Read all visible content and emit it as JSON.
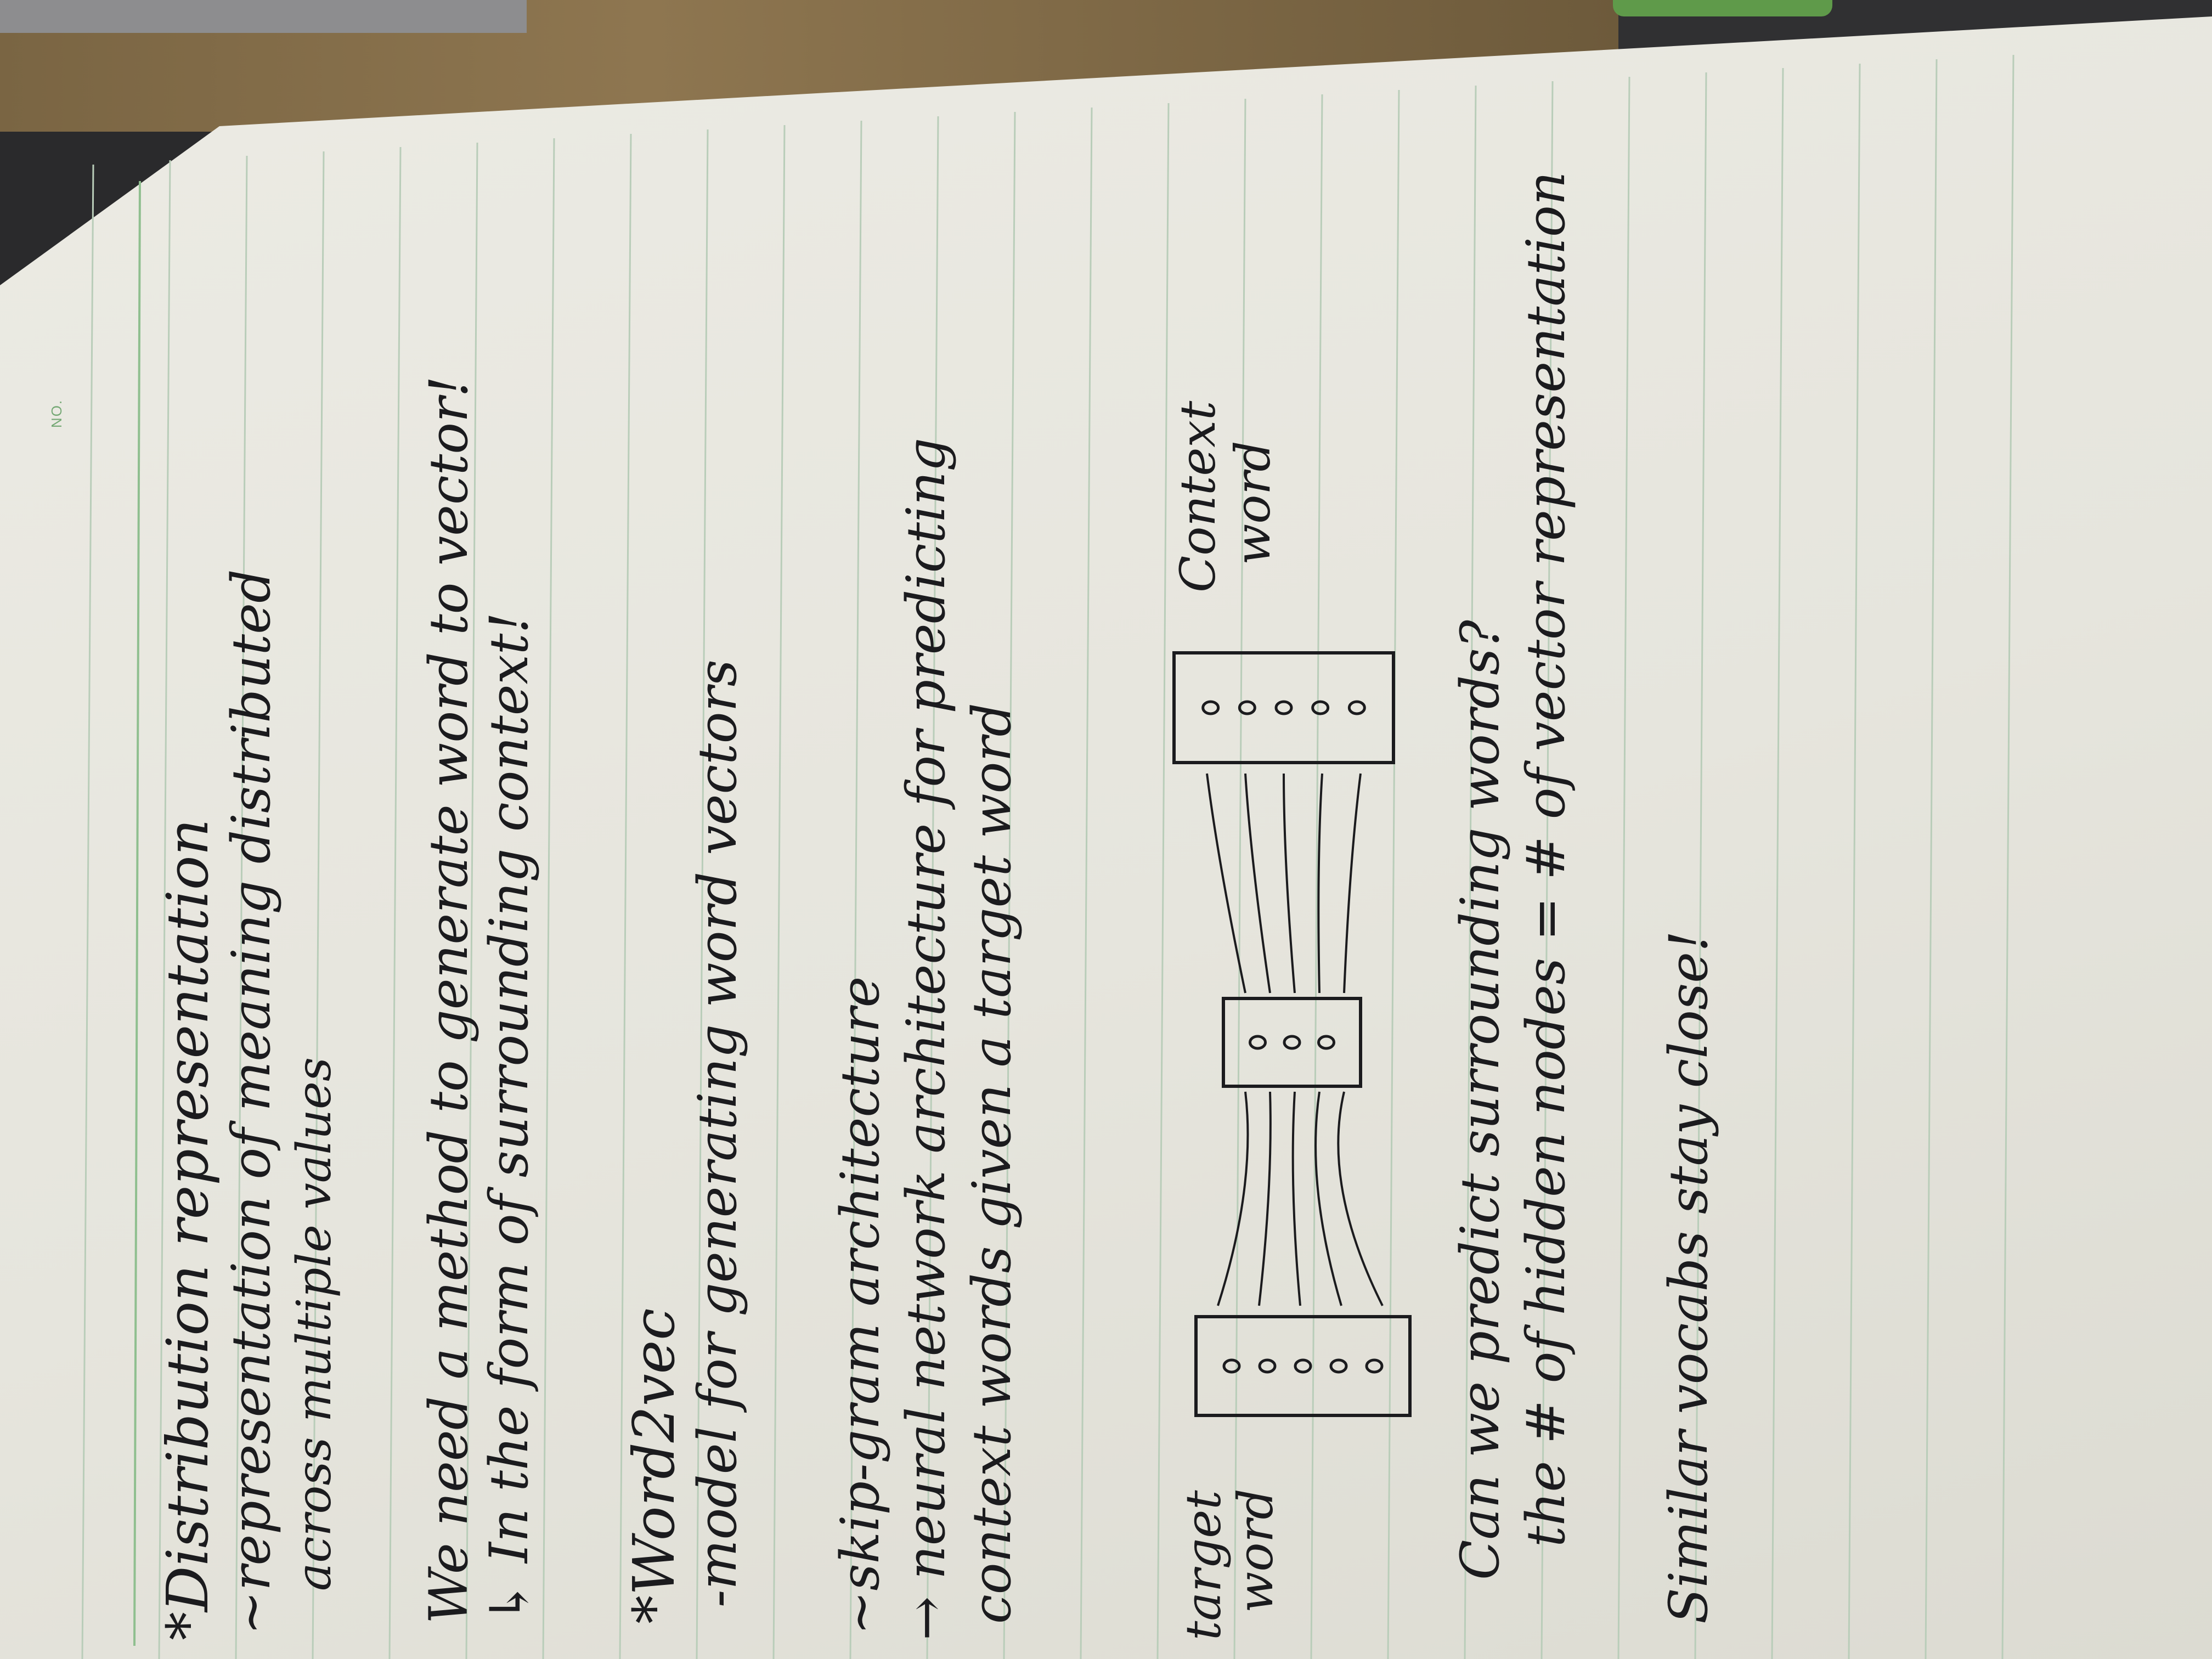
{
  "page_number_label": "NO.",
  "notes": {
    "line_1": "*Distribution representation",
    "line_2": "~representation of meaning distributed",
    "line_3": "across multiple values",
    "line_4": "We need a method to generate word to vector!",
    "line_5": "↳ In the form of surrounding context!",
    "line_6": "*Word2vec",
    "line_7": "-model for generating word vectors",
    "line_8": "~skip-gram architecture",
    "line_9": "→ neural network architecture for predicting",
    "line_10": "context words given a target word",
    "line_11": "Can we predict surrounding words?",
    "line_12": "the # of hidden nodes = # of vector representation",
    "line_13": "Similar vocabs stay close!"
  },
  "diagram": {
    "input_label_line_1": "target",
    "input_label_line_2": "word",
    "output_label_line_1": "Context",
    "output_label_line_2": "word",
    "input_node_count": 5,
    "hidden_node_count": 3,
    "output_node_count": 5
  },
  "colors": {
    "ink": "#1b1b1e",
    "paper": "#e9e8e0",
    "rule_line": "#b9cdb9",
    "margin_line": "#8fbf8f",
    "page_number": "#74a874"
  }
}
